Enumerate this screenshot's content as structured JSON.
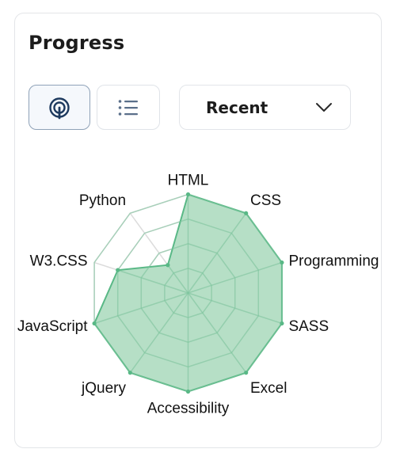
{
  "header": {
    "title": "Progress"
  },
  "view_toggle": {
    "radar_icon": "radar-icon",
    "list_icon": "list-icon"
  },
  "filter": {
    "selected": "Recent",
    "icon": "chevron-down-icon"
  },
  "colors": {
    "fill": "#a9d9bc",
    "stroke": "#59b886",
    "grid": "#dcdcdc"
  },
  "chart_data": {
    "type": "radar",
    "title": "",
    "categories": [
      "HTML",
      "CSS",
      "Programming",
      "SASS",
      "Excel",
      "Accessibility",
      "jQuery",
      "JavaScript",
      "W3.CSS",
      "Python"
    ],
    "series": [
      {
        "values": [
          100,
          100,
          100,
          100,
          100,
          100,
          100,
          100,
          75,
          35
        ]
      }
    ],
    "rmax": 100,
    "grid_levels": 4
  }
}
